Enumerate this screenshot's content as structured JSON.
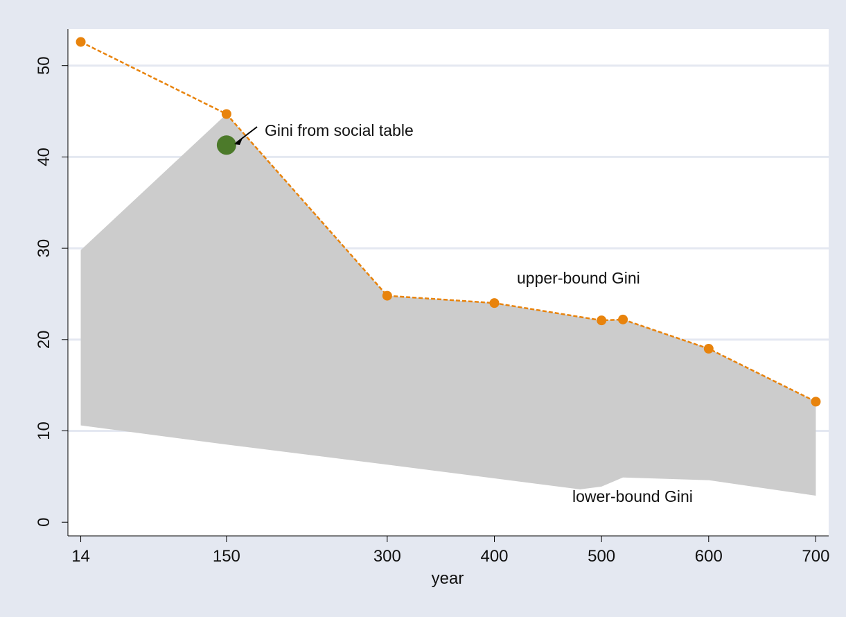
{
  "chart_data": {
    "type": "area",
    "xlabel": "year",
    "ylabel": "",
    "x_ticks": [
      14,
      150,
      300,
      400,
      500,
      600,
      700
    ],
    "y_ticks": [
      0,
      10,
      20,
      30,
      40,
      50
    ],
    "xlim": [
      2,
      712
    ],
    "ylim": [
      -1.5,
      54
    ],
    "grid": "horizontal",
    "colors": {
      "background": "#e4e8f1",
      "plot_area": "#ffffff",
      "band_fill": "#cccccc",
      "upper_line": "#e8830c",
      "social_table_point": "#4c7a2a",
      "gridline": "#e4e8f1"
    },
    "series": [
      {
        "name": "upper-bound Gini",
        "style": "dashed line with markers",
        "points": [
          [
            14,
            52.6
          ],
          [
            150,
            44.7
          ],
          [
            300,
            24.8
          ],
          [
            400,
            24.0
          ],
          [
            500,
            22.1
          ],
          [
            520,
            22.2
          ],
          [
            600,
            19.0
          ],
          [
            700,
            13.2
          ]
        ]
      },
      {
        "name": "lower-bound Gini",
        "style": "lower edge of shaded band",
        "points": [
          [
            14,
            10.6
          ],
          [
            150,
            8.5
          ],
          [
            300,
            6.3
          ],
          [
            400,
            4.8
          ],
          [
            480,
            3.6
          ],
          [
            500,
            3.9
          ],
          [
            520,
            4.9
          ],
          [
            600,
            4.6
          ],
          [
            700,
            2.9
          ]
        ]
      },
      {
        "name": "Gini from social table",
        "style": "single point",
        "points": [
          [
            150,
            41.3
          ]
        ]
      }
    ],
    "band_upper_override": [
      [
        14,
        29.8
      ],
      [
        150,
        44.7
      ]
    ],
    "annotations": {
      "social_table": "Gini from social table",
      "upper": "upper-bound Gini",
      "lower": "lower-bound Gini"
    }
  }
}
